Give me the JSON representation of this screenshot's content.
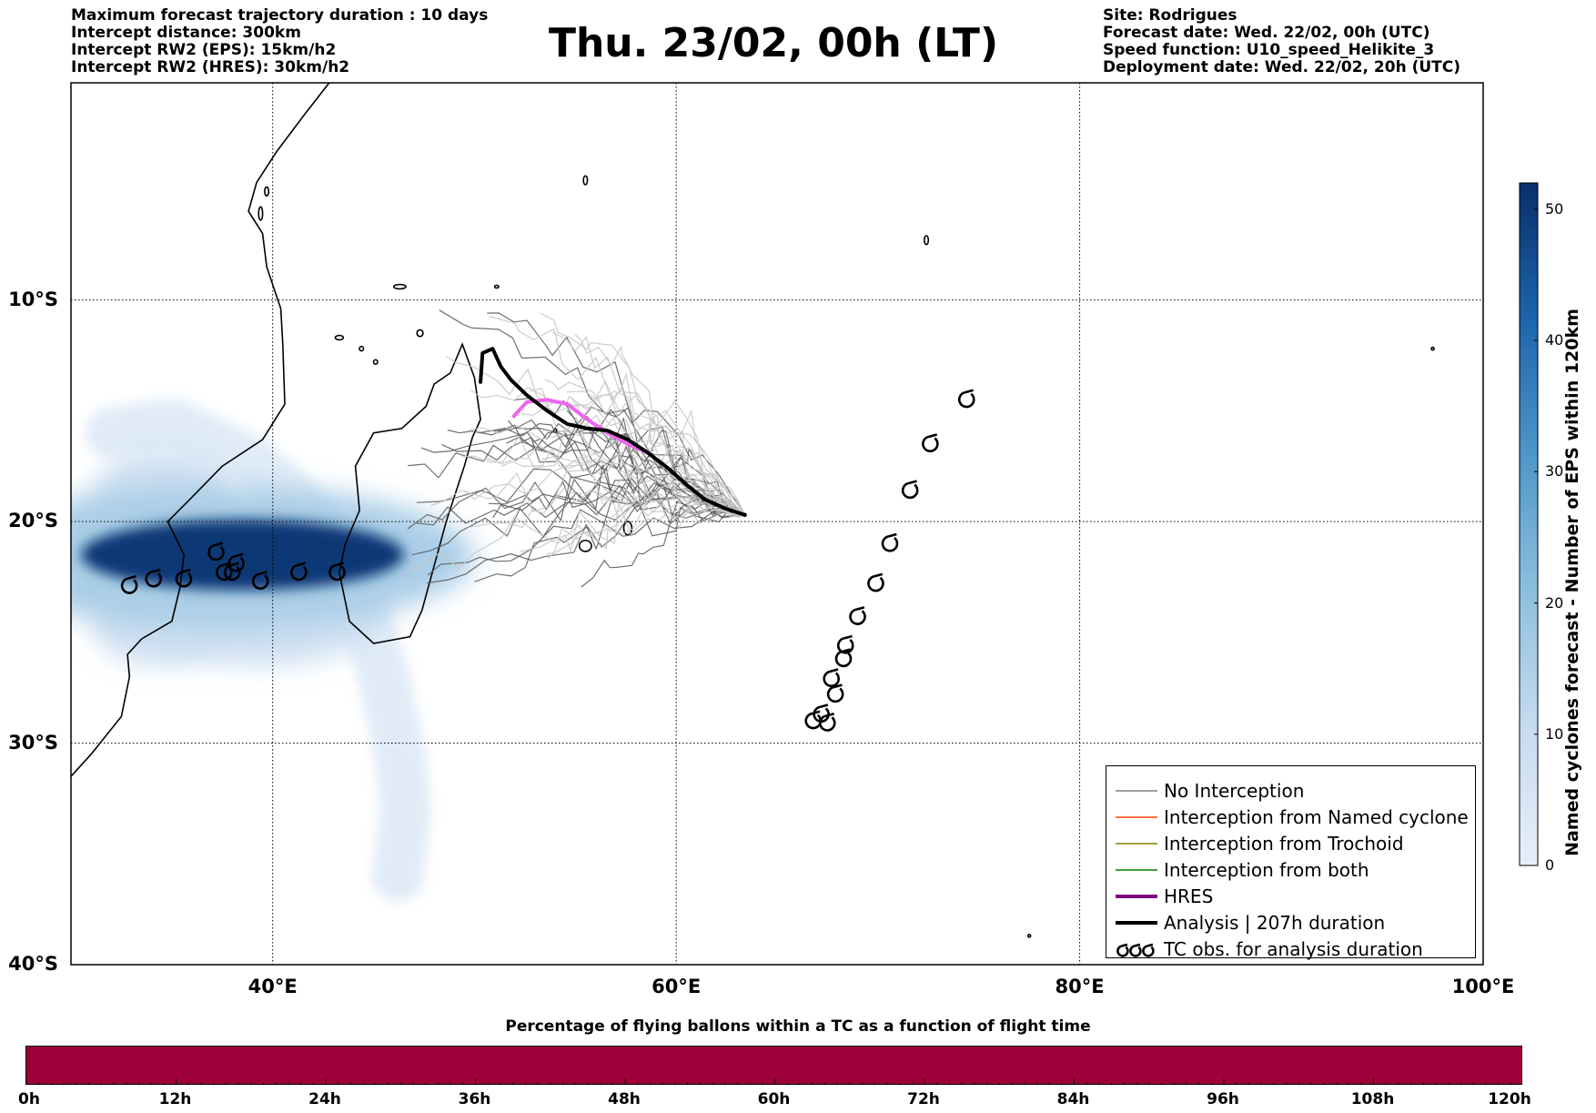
{
  "header_left": [
    "Maximum forecast trajectory duration : 10 days",
    "Intercept distance: 300km",
    "Intercept RW2 (EPS):  15km/h2",
    "Intercept RW2 (HRES): 30km/h2"
  ],
  "title": "Thu. 23/02, 00h (LT)",
  "header_right": [
    "Site: Rodrigues",
    "Forecast date: Wed. 22/02, 00h (UTC)",
    "Speed function: U10_speed_Helikite_3",
    "Deployment date: Wed. 22/02, 20h (UTC)"
  ],
  "map": {
    "lon_range": [
      30,
      100
    ],
    "lat_range": [
      -40,
      -0.2
    ],
    "lat_ticks": [
      {
        "lat": -10,
        "label": "10°S"
      },
      {
        "lat": -20,
        "label": "20°S"
      },
      {
        "lat": -30,
        "label": "30°S"
      },
      {
        "lat": -40,
        "label": "40°S"
      }
    ],
    "lon_ticks": [
      {
        "lon": 40,
        "label": "40°E"
      },
      {
        "lon": 60,
        "label": "60°E"
      },
      {
        "lon": 80,
        "label": "80°E"
      },
      {
        "lon": 100,
        "label": "100°E"
      }
    ],
    "grid": "dotted",
    "deployment_site": {
      "lon": 63.4,
      "lat": -19.7
    },
    "analysis_track": [
      [
        50.3,
        -13.7
      ],
      [
        50.4,
        -12.4
      ],
      [
        50.9,
        -12.2
      ],
      [
        51.3,
        -13.0
      ],
      [
        51.8,
        -13.6
      ],
      [
        52.6,
        -14.3
      ],
      [
        53.6,
        -15.0
      ],
      [
        54.6,
        -15.6
      ],
      [
        55.6,
        -15.8
      ],
      [
        56.6,
        -15.9
      ],
      [
        57.6,
        -16.3
      ],
      [
        58.6,
        -16.9
      ],
      [
        59.6,
        -17.6
      ],
      [
        60.6,
        -18.4
      ],
      [
        61.4,
        -19.0
      ],
      [
        62.4,
        -19.4
      ],
      [
        63.4,
        -19.7
      ]
    ],
    "hres_track": [
      [
        51.9,
        -15.3
      ],
      [
        52.6,
        -14.6
      ],
      [
        53.6,
        -14.5
      ],
      [
        54.6,
        -14.7
      ],
      [
        55.6,
        -15.4
      ],
      [
        56.6,
        -16.0
      ],
      [
        57.6,
        -16.5
      ],
      [
        58.6,
        -16.9
      ]
    ],
    "tc_obs": [
      [
        74.4,
        -14.5
      ],
      [
        72.6,
        -16.5
      ],
      [
        71.6,
        -18.6
      ],
      [
        70.6,
        -21.0
      ],
      [
        69.9,
        -22.8
      ],
      [
        69.0,
        -24.3
      ],
      [
        68.4,
        -25.6
      ],
      [
        68.3,
        -26.2
      ],
      [
        67.7,
        -27.1
      ],
      [
        67.9,
        -27.8
      ],
      [
        67.2,
        -28.7
      ],
      [
        66.8,
        -29.0
      ],
      [
        67.5,
        -29.1
      ],
      [
        43.2,
        -22.3
      ],
      [
        41.3,
        -22.3
      ],
      [
        39.4,
        -22.7
      ],
      [
        38.2,
        -21.9
      ],
      [
        38.0,
        -22.3
      ],
      [
        37.6,
        -22.3
      ],
      [
        37.2,
        -21.4
      ],
      [
        35.6,
        -22.6
      ],
      [
        34.1,
        -22.6
      ],
      [
        32.9,
        -22.9
      ]
    ],
    "eps_density_blobs": [
      {
        "lon": 38.5,
        "lat": -21.5,
        "rlon": 8.0,
        "rlat": 1.6,
        "value": 50
      },
      {
        "lon": 37.5,
        "lat": -21.6,
        "rlon": 12.5,
        "rlat": 3.2,
        "value": 15
      },
      {
        "lon": 34.5,
        "lat": -19.0,
        "rlon": 3.5,
        "rlat": 2.2,
        "value": 8
      },
      {
        "lon": 39.5,
        "lat": -24.0,
        "rlon": 6.0,
        "rlat": 2.5,
        "value": 8
      },
      {
        "lon": 34.5,
        "lat": -24.5,
        "rlon": 3.5,
        "rlat": 2.0,
        "value": 8
      }
    ],
    "eps_plume_path": [
      [
        32,
        -16.0
      ],
      [
        35,
        -15.6
      ],
      [
        39,
        -17.3
      ],
      [
        42,
        -19.8
      ],
      [
        43.5,
        -22.0
      ],
      [
        44.5,
        -24.0
      ],
      [
        45.5,
        -27.0
      ],
      [
        46.3,
        -30.5
      ],
      [
        46.6,
        -33.0
      ],
      [
        46.2,
        -36.0
      ]
    ]
  },
  "colorbar": {
    "label": "Named cyclones forecast - Number of EPS within 120km",
    "ticks": [
      "0",
      "10",
      "20",
      "30",
      "40",
      "50"
    ],
    "max": 52
  },
  "legend": {
    "items": [
      {
        "label": "No Interception",
        "color": "#808080",
        "style": "thin"
      },
      {
        "label": "Interception from Named cyclone",
        "color": "#ff4500",
        "style": "thin"
      },
      {
        "label": "Interception from Trochoid",
        "color": "#808000",
        "style": "thin"
      },
      {
        "label": "Interception from both",
        "color": "#008000",
        "style": "thin"
      },
      {
        "label": "HRES",
        "color": "#800080",
        "style": "thick"
      },
      {
        "label": "Analysis | 207h duration",
        "color": "#000000",
        "style": "thick"
      },
      {
        "label": "TC obs. for analysis duration",
        "color": "#000000",
        "style": "symbol"
      }
    ]
  },
  "bottom_bar": {
    "title": "Percentage of flying ballons within a TC as a function of flight time",
    "fill_color": "#9e003a",
    "tick_labels": [
      "0h",
      "12h",
      "24h",
      "36h",
      "48h",
      "60h",
      "72h",
      "84h",
      "96h",
      "108h",
      "120h"
    ]
  }
}
